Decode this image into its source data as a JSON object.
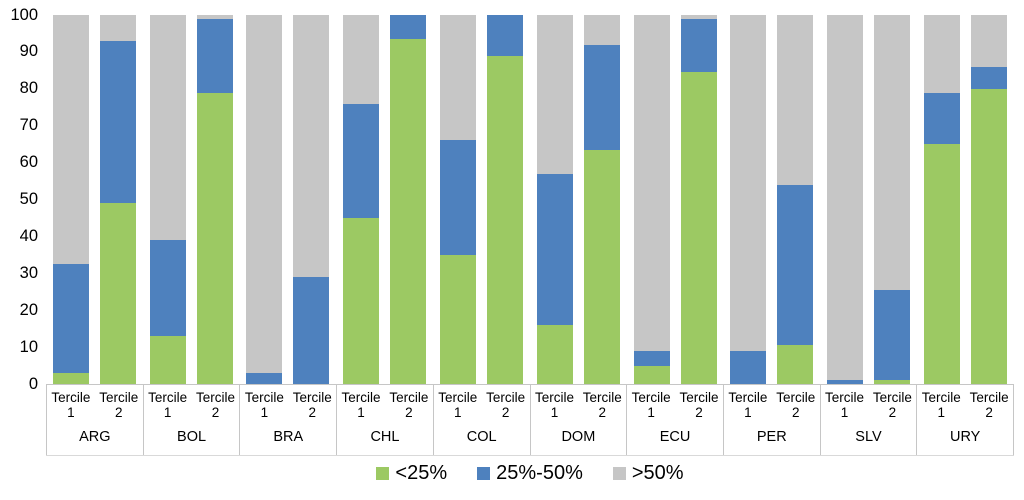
{
  "chart_data": {
    "type": "bar",
    "stacked": true,
    "title": "",
    "xlabel": "",
    "ylabel": "",
    "ylim": [
      0,
      100
    ],
    "y_ticks": [
      0,
      10,
      20,
      30,
      40,
      50,
      60,
      70,
      80,
      90,
      100
    ],
    "grid": false,
    "legend_position": "bottom-center",
    "bar_sub_labels": [
      "Tercile\n1",
      "Tercile\n2"
    ],
    "series_order_bottom_to_top": [
      "<25%",
      "25%-50%",
      ">50%"
    ],
    "legend": [
      {
        "label": "<25%",
        "color": "#9cc963"
      },
      {
        "label": "25%-50%",
        "color": "#4e81be"
      },
      {
        "label": ">50%",
        "color": "#c6c6c6"
      }
    ],
    "groups": [
      {
        "country": "ARG",
        "bars": [
          {
            "label": "Tercile 1",
            "segments": [
              3,
              29.5,
              67.5
            ]
          },
          {
            "label": "Tercile 2",
            "segments": [
              49,
              44,
              7
            ]
          }
        ]
      },
      {
        "country": "BOL",
        "bars": [
          {
            "label": "Tercile 1",
            "segments": [
              13,
              26,
              61
            ]
          },
          {
            "label": "Tercile 2",
            "segments": [
              79,
              20,
              1
            ]
          }
        ]
      },
      {
        "country": "BRA",
        "bars": [
          {
            "label": "Tercile 1",
            "segments": [
              0,
              3,
              97
            ]
          },
          {
            "label": "Tercile 2",
            "segments": [
              0,
              29,
              71
            ]
          }
        ]
      },
      {
        "country": "CHL",
        "bars": [
          {
            "label": "Tercile 1",
            "segments": [
              45,
              31,
              24
            ]
          },
          {
            "label": "Tercile 2",
            "segments": [
              93.5,
              6.5,
              0
            ]
          }
        ]
      },
      {
        "country": "COL",
        "bars": [
          {
            "label": "Tercile 1",
            "segments": [
              35,
              31,
              34
            ]
          },
          {
            "label": "Tercile 2",
            "segments": [
              89,
              11,
              0
            ]
          }
        ]
      },
      {
        "country": "DOM",
        "bars": [
          {
            "label": "Tercile 1",
            "segments": [
              16,
              41,
              43
            ]
          },
          {
            "label": "Tercile 2",
            "segments": [
              63.5,
              28.5,
              8
            ]
          }
        ]
      },
      {
        "country": "ECU",
        "bars": [
          {
            "label": "Tercile 1",
            "segments": [
              5,
              4,
              91
            ]
          },
          {
            "label": "Tercile 2",
            "segments": [
              84.5,
              14.5,
              1
            ]
          }
        ]
      },
      {
        "country": "PER",
        "bars": [
          {
            "label": "Tercile 1",
            "segments": [
              0,
              9,
              91
            ]
          },
          {
            "label": "Tercile 2",
            "segments": [
              10.5,
              43.5,
              46
            ]
          }
        ]
      },
      {
        "country": "SLV",
        "bars": [
          {
            "label": "Tercile 1",
            "segments": [
              0,
              1,
              99
            ]
          },
          {
            "label": "Tercile 2",
            "segments": [
              1,
              24.5,
              74.5
            ]
          }
        ]
      },
      {
        "country": "URY",
        "bars": [
          {
            "label": "Tercile 1",
            "segments": [
              65,
              14,
              21
            ]
          },
          {
            "label": "Tercile 2",
            "segments": [
              80,
              6,
              14
            ]
          }
        ]
      }
    ]
  },
  "colors": {
    "axis_line": "#c6c6c6",
    "text": "#000000",
    "background": "#ffffff"
  }
}
